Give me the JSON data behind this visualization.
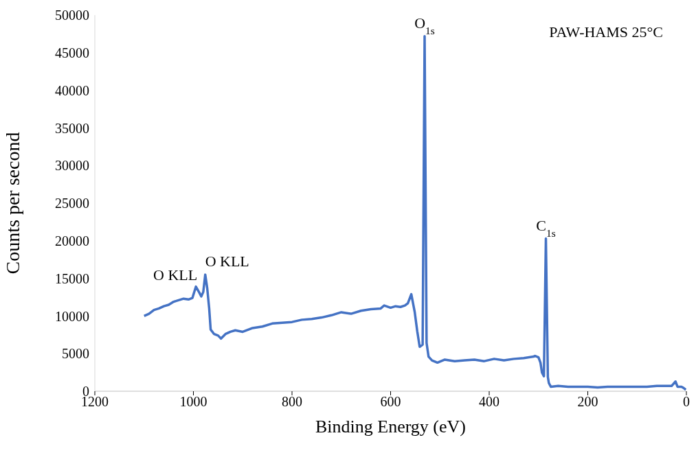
{
  "chart_data": {
    "type": "line",
    "xlabel": "Binding Energy (eV)",
    "ylabel": "Counts per second",
    "xlim": [
      1200,
      0
    ],
    "xticks": [
      1200,
      1000,
      800,
      600,
      400,
      200,
      0
    ],
    "ylim": [
      0,
      50000
    ],
    "yticks": [
      0,
      5000,
      10000,
      15000,
      20000,
      25000,
      30000,
      35000,
      40000,
      45000,
      50000
    ],
    "grid": false,
    "legend": false,
    "marker": "none",
    "series": [
      {
        "color": "#4472c4",
        "x": [
          1100,
          1090,
          1080,
          1070,
          1060,
          1050,
          1040,
          1030,
          1020,
          1010,
          1002,
          995,
          988,
          984,
          980,
          976,
          972,
          968,
          965,
          958,
          950,
          944,
          935,
          925,
          915,
          900,
          880,
          860,
          840,
          820,
          800,
          780,
          760,
          740,
          720,
          700,
          680,
          660,
          640,
          620,
          613,
          600,
          590,
          580,
          571,
          565,
          558,
          551,
          546,
          541,
          535,
          531,
          527,
          523,
          516,
          505,
          490,
          470,
          450,
          430,
          410,
          390,
          370,
          350,
          330,
          310,
          307,
          300,
          296,
          293,
          289,
          285,
          281,
          279,
          275,
          260,
          240,
          220,
          200,
          180,
          160,
          140,
          120,
          100,
          80,
          60,
          40,
          30,
          22,
          18,
          10,
          5,
          1
        ],
        "values": [
          10000,
          10300,
          10800,
          11000,
          11300,
          11500,
          11900,
          12100,
          12300,
          12200,
          12400,
          13900,
          13100,
          12600,
          13200,
          15500,
          13700,
          11000,
          8200,
          7600,
          7400,
          7000,
          7600,
          7900,
          8100,
          7900,
          8400,
          8600,
          9000,
          9100,
          9200,
          9500,
          9600,
          9800,
          10100,
          10500,
          10300,
          10700,
          10900,
          11000,
          11400,
          11100,
          11300,
          11200,
          11400,
          11700,
          12900,
          10500,
          8000,
          5900,
          6200,
          47200,
          6400,
          4600,
          4100,
          3800,
          4200,
          4000,
          4100,
          4200,
          4000,
          4300,
          4100,
          4300,
          4400,
          4600,
          4700,
          4500,
          3800,
          2500,
          2000,
          20300,
          1900,
          1100,
          600,
          700,
          600,
          600,
          600,
          500,
          600,
          600,
          600,
          600,
          600,
          700,
          700,
          700,
          1300,
          600,
          600,
          400,
          200
        ]
      }
    ],
    "annotations": [
      {
        "text": "O KLL",
        "x": 995,
        "y": 13900
      },
      {
        "text": "O KLL",
        "x": 976,
        "y": 15500
      },
      {
        "text": "O$_{1s}$",
        "x": 531,
        "y": 47200
      },
      {
        "text": "C$_{1s}$",
        "x": 285,
        "y": 20300
      },
      "PAW-HAMS 25°C"
    ]
  }
}
